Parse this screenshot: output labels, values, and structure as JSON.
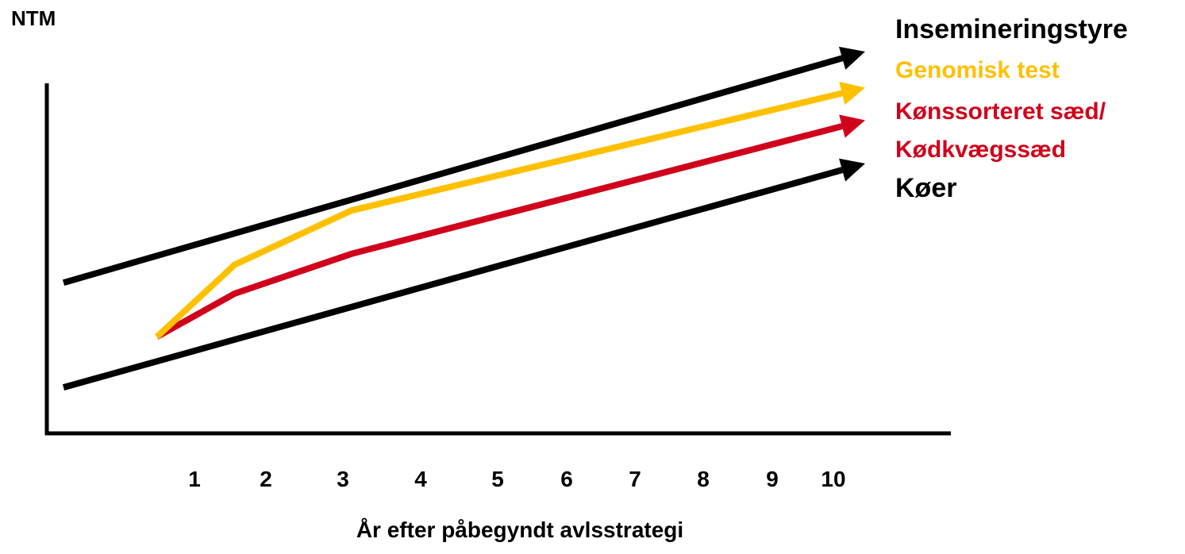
{
  "chart_data": {
    "type": "line",
    "title": "",
    "ylabel": "NTM",
    "xlabel": "År efter påbegyndt avlsstrategi",
    "x_ticks": [
      "1",
      "2",
      "3",
      "4",
      "5",
      "6",
      "7",
      "8",
      "9",
      "10"
    ],
    "xlim": [
      0.3,
      10.6
    ],
    "ylim": [
      0,
      10
    ],
    "grid": false,
    "legend_position": "right",
    "series": [
      {
        "name": "Insemineringstyre",
        "color": "#000000",
        "points": [
          [
            0.3,
            3.6
          ],
          [
            10.6,
            10.0
          ]
        ]
      },
      {
        "name": "Genomisk test",
        "color": "#FFC000",
        "points": [
          [
            1.5,
            2.1
          ],
          [
            2.5,
            4.1
          ],
          [
            4.0,
            5.6
          ],
          [
            10.6,
            9.0
          ]
        ]
      },
      {
        "name": "Kønssorteret sæd/ Kødkvægssæd",
        "name_lines": [
          "Kønssorteret sæd/",
          "Kødkvægssæd"
        ],
        "color": "#D0021B",
        "points": [
          [
            1.5,
            2.1
          ],
          [
            2.5,
            3.3
          ],
          [
            4.0,
            4.4
          ],
          [
            10.6,
            8.1
          ]
        ]
      },
      {
        "name": "Køer",
        "color": "#000000",
        "points": [
          [
            0.3,
            0.7
          ],
          [
            10.6,
            6.9
          ]
        ]
      }
    ]
  }
}
